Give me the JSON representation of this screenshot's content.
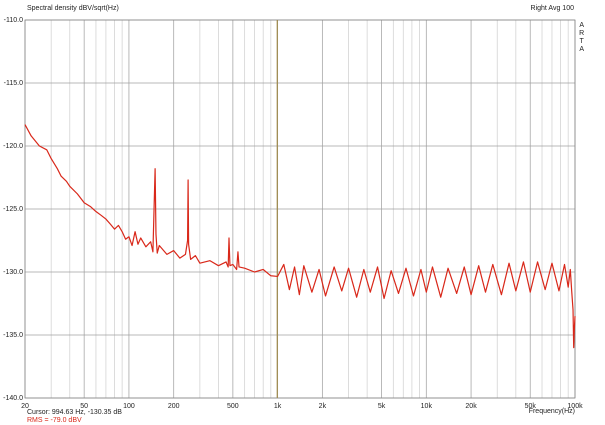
{
  "chart_data": {
    "type": "line",
    "title": "Spectral density dBV/sqrt(Hz)",
    "subtitle": "Right  Avg 100",
    "brand": "ARTA",
    "xlabel": "Frequency(Hz)",
    "cursor_label": "Cursor: 994.63 Hz, -130.35 dB",
    "cursor_x": 994.63,
    "cursor_color": "#a08a4a",
    "rms_label": "RMS = -79.0 dBV",
    "rms_color": "#d9281a",
    "xscale": "log",
    "grid": true,
    "xlim": [
      20,
      100000
    ],
    "ylim": [
      -140,
      -110
    ],
    "xticks": [
      20,
      50,
      100,
      200,
      500,
      {
        "value": 1000,
        "label": "1k"
      },
      {
        "value": 2000,
        "label": "2k"
      },
      {
        "value": 5000,
        "label": "5k"
      },
      {
        "value": 10000,
        "label": "10k"
      },
      {
        "value": 20000,
        "label": "20k"
      },
      {
        "value": 50000,
        "label": "50k"
      },
      {
        "value": 100000,
        "label": "100k"
      }
    ],
    "x_minor_grid": [
      30,
      40,
      60,
      70,
      80,
      90,
      300,
      400,
      600,
      700,
      800,
      900,
      3000,
      4000,
      6000,
      7000,
      8000,
      9000,
      30000,
      40000,
      60000,
      70000,
      80000,
      90000
    ],
    "yticks": [
      {
        "value": -110,
        "label": "-110.0"
      },
      {
        "value": -115,
        "label": "-115.0"
      },
      {
        "value": -120,
        "label": "-120.0"
      },
      {
        "value": -125,
        "label": "-125.0"
      },
      {
        "value": -130,
        "label": "-130.0"
      },
      {
        "value": -135,
        "label": "-135.0"
      },
      {
        "value": -140,
        "label": "-140.0"
      }
    ],
    "x": [
      20,
      22,
      25,
      28,
      30,
      33,
      35,
      38,
      40,
      45,
      50,
      55,
      60,
      65,
      70,
      75,
      80,
      85,
      90,
      95,
      100,
      105,
      110,
      115,
      120,
      130,
      140,
      145,
      150,
      152,
      155,
      160,
      180,
      200,
      220,
      240,
      248,
      250,
      252,
      260,
      280,
      300,
      350,
      400,
      450,
      465,
      471,
      478,
      500,
      530,
      541,
      550,
      600,
      700,
      800,
      900,
      1000,
      1100,
      1200,
      1300,
      1400,
      1500,
      1700,
      1900,
      2100,
      2400,
      2700,
      3000,
      3400,
      3800,
      4200,
      4700,
      5200,
      5800,
      6500,
      7300,
      8200,
      9200,
      10000,
      11000,
      12500,
      14000,
      16000,
      18000,
      20000,
      22500,
      25000,
      28000,
      32000,
      36000,
      40000,
      45000,
      50000,
      56000,
      63000,
      70000,
      78000,
      85000,
      90000,
      93000,
      95000,
      97000,
      98000,
      99000,
      100000
    ],
    "series": [
      {
        "color": "#d9281a",
        "values": [
          -118.3,
          -119.2,
          -120.0,
          -120.3,
          -121.0,
          -121.8,
          -122.4,
          -122.8,
          -123.2,
          -123.8,
          -124.5,
          -124.8,
          -125.2,
          -125.5,
          -125.8,
          -126.2,
          -126.6,
          -126.3,
          -126.8,
          -127.4,
          -127.2,
          -127.9,
          -126.8,
          -127.8,
          -127.3,
          -128.0,
          -127.6,
          -128.4,
          -121.8,
          -127.0,
          -128.5,
          -127.9,
          -128.6,
          -128.3,
          -128.9,
          -128.6,
          -127.5,
          -122.7,
          -127.8,
          -129.0,
          -128.7,
          -129.3,
          -129.1,
          -129.5,
          -129.2,
          -129.6,
          -127.3,
          -129.5,
          -129.4,
          -129.8,
          -128.4,
          -129.6,
          -129.7,
          -130.0,
          -129.8,
          -130.3,
          -130.35,
          -129.4,
          -131.4,
          -129.6,
          -131.8,
          -129.5,
          -131.6,
          -129.8,
          -131.9,
          -129.6,
          -131.5,
          -129.7,
          -132.0,
          -129.8,
          -131.6,
          -129.6,
          -132.1,
          -129.9,
          -131.7,
          -129.7,
          -131.9,
          -129.8,
          -131.6,
          -129.6,
          -132.0,
          -129.7,
          -131.7,
          -129.6,
          -131.8,
          -129.5,
          -131.6,
          -129.4,
          -131.8,
          -129.3,
          -131.5,
          -129.2,
          -131.6,
          -129.2,
          -131.4,
          -129.3,
          -131.5,
          -129.4,
          -131.2,
          -129.8,
          -131.5,
          -133.0,
          -136.0,
          -134.5,
          -133.5
        ]
      }
    ]
  }
}
